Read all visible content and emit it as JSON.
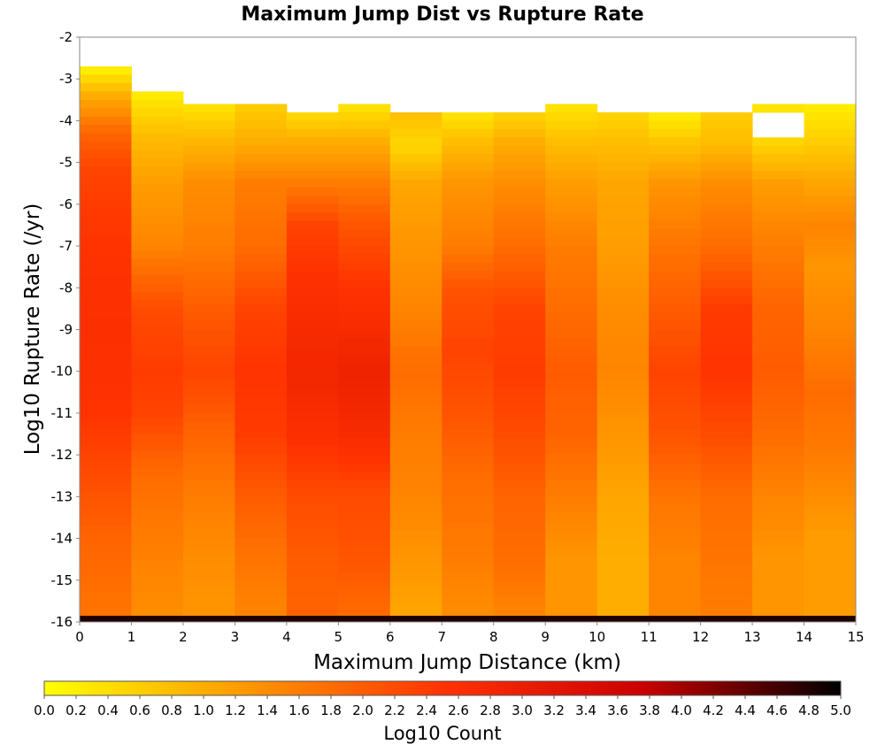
{
  "chart_data": {
    "type": "heatmap",
    "title": "Maximum Jump Dist vs Rupture Rate",
    "xlabel": "Maximum Jump Distance (km)",
    "ylabel": "Log10 Rupture Rate (/yr)",
    "xlim": [
      0,
      15
    ],
    "ylim": [
      -16,
      -2
    ],
    "x_ticks": [
      "0",
      "1",
      "2",
      "3",
      "4",
      "5",
      "6",
      "7",
      "8",
      "9",
      "10",
      "11",
      "12",
      "13",
      "14",
      "15"
    ],
    "y_ticks": [
      "-2",
      "-3",
      "-4",
      "-5",
      "-6",
      "-7",
      "-8",
      "-9",
      "-10",
      "-11",
      "-12",
      "-13",
      "-14",
      "-15",
      "-16"
    ],
    "x_bin_width": 1,
    "y_bin_height": 0.2,
    "colorbar": {
      "label": "Log10 Count",
      "min": 0,
      "max": 5,
      "ticks": [
        "0.0",
        "0.2",
        "0.4",
        "0.6",
        "0.8",
        "1.0",
        "1.2",
        "1.4",
        "1.6",
        "1.8",
        "2.0",
        "2.2",
        "2.4",
        "2.6",
        "2.8",
        "3.0",
        "3.2",
        "3.4",
        "3.6",
        "3.8",
        "4.0",
        "4.2",
        "4.4",
        "4.6",
        "4.8",
        "5.0"
      ],
      "colors": [
        "#ffff00",
        "#ff9900",
        "#ff3300",
        "#cc0000",
        "#000000"
      ]
    },
    "columns": [
      {
        "x": 0,
        "y_top": -2.7,
        "profile": [
          [
            -2.7,
            0.1
          ],
          [
            -3.4,
            1.0
          ],
          [
            -4.3,
            1.9
          ],
          [
            -5.2,
            2.3
          ],
          [
            -7.0,
            2.5
          ],
          [
            -9.0,
            2.6
          ],
          [
            -11.0,
            2.5
          ],
          [
            -12.5,
            2.2
          ],
          [
            -14.0,
            1.9
          ],
          [
            -15.8,
            1.7
          ]
        ]
      },
      {
        "x": 1,
        "y_top": -3.3,
        "profile": [
          [
            -3.3,
            0.2
          ],
          [
            -4.3,
            0.8
          ],
          [
            -5.5,
            1.2
          ],
          [
            -7.0,
            1.5
          ],
          [
            -8.5,
            2.2
          ],
          [
            -10.0,
            2.4
          ],
          [
            -11.0,
            2.3
          ],
          [
            -12.5,
            1.8
          ],
          [
            -14.0,
            1.6
          ],
          [
            -15.8,
            1.4
          ]
        ]
      },
      {
        "x": 2,
        "y_top": -3.6,
        "profile": [
          [
            -3.6,
            0.3
          ],
          [
            -4.5,
            0.9
          ],
          [
            -5.5,
            1.4
          ],
          [
            -7.0,
            1.6
          ],
          [
            -8.5,
            2.0
          ],
          [
            -10.0,
            2.3
          ],
          [
            -11.5,
            1.9
          ],
          [
            -13.0,
            1.6
          ],
          [
            -14.5,
            1.4
          ],
          [
            -15.8,
            1.3
          ]
        ]
      },
      {
        "x": 3,
        "y_top": -3.6,
        "profile": [
          [
            -3.6,
            0.6
          ],
          [
            -4.5,
            1.0
          ],
          [
            -5.5,
            1.6
          ],
          [
            -7.0,
            1.8
          ],
          [
            -8.5,
            2.3
          ],
          [
            -10.0,
            2.5
          ],
          [
            -11.5,
            2.4
          ],
          [
            -13.0,
            2.0
          ],
          [
            -14.5,
            1.7
          ],
          [
            -15.8,
            1.5
          ]
        ]
      },
      {
        "x": 4,
        "y_top": -3.8,
        "profile": [
          [
            -3.8,
            0.4
          ],
          [
            -4.5,
            1.0
          ],
          [
            -5.5,
            1.6
          ],
          [
            -6.5,
            2.3
          ],
          [
            -8.0,
            2.6
          ],
          [
            -10.0,
            2.8
          ],
          [
            -11.5,
            2.6
          ],
          [
            -13.0,
            2.2
          ],
          [
            -14.5,
            2.0
          ],
          [
            -15.8,
            1.9
          ]
        ]
      },
      {
        "x": 5,
        "y_top": -3.6,
        "profile": [
          [
            -3.6,
            0.3
          ],
          [
            -4.5,
            1.0
          ],
          [
            -5.5,
            1.6
          ],
          [
            -6.5,
            2.1
          ],
          [
            -8.0,
            2.5
          ],
          [
            -10.0,
            2.9
          ],
          [
            -11.5,
            2.7
          ],
          [
            -13.0,
            2.2
          ],
          [
            -14.5,
            2.1
          ],
          [
            -15.8,
            1.8
          ]
        ]
      },
      {
        "x": 6,
        "y_top": -3.8,
        "profile": [
          [
            -3.8,
            0.8
          ],
          [
            -4.6,
            0.5
          ],
          [
            -5.5,
            1.1
          ],
          [
            -7.0,
            1.3
          ],
          [
            -8.5,
            1.5
          ],
          [
            -10.0,
            1.8
          ],
          [
            -11.5,
            1.6
          ],
          [
            -13.0,
            1.5
          ],
          [
            -14.5,
            1.3
          ],
          [
            -15.8,
            1.1
          ]
        ]
      },
      {
        "x": 7,
        "y_top": -3.8,
        "profile": [
          [
            -3.8,
            0.3
          ],
          [
            -4.5,
            0.8
          ],
          [
            -5.5,
            1.3
          ],
          [
            -7.0,
            1.6
          ],
          [
            -8.0,
            2.1
          ],
          [
            -9.5,
            2.3
          ],
          [
            -11.0,
            2.1
          ],
          [
            -12.5,
            1.8
          ],
          [
            -14.5,
            1.6
          ],
          [
            -15.8,
            1.4
          ]
        ]
      },
      {
        "x": 8,
        "y_top": -3.8,
        "profile": [
          [
            -3.8,
            0.5
          ],
          [
            -4.5,
            1.0
          ],
          [
            -5.5,
            1.4
          ],
          [
            -7.0,
            1.8
          ],
          [
            -8.5,
            2.3
          ],
          [
            -10.0,
            2.4
          ],
          [
            -11.5,
            2.2
          ],
          [
            -13.0,
            1.9
          ],
          [
            -14.5,
            1.8
          ],
          [
            -15.8,
            1.5
          ]
        ]
      },
      {
        "x": 9,
        "y_top": -3.6,
        "profile": [
          [
            -3.6,
            0.3
          ],
          [
            -4.5,
            0.8
          ],
          [
            -5.5,
            1.2
          ],
          [
            -7.0,
            1.6
          ],
          [
            -8.5,
            1.8
          ],
          [
            -10.0,
            2.0
          ],
          [
            -11.5,
            1.9
          ],
          [
            -13.0,
            1.6
          ],
          [
            -14.5,
            1.3
          ],
          [
            -15.8,
            1.3
          ]
        ]
      },
      {
        "x": 10,
        "y_top": -3.8,
        "profile": [
          [
            -3.8,
            0.5
          ],
          [
            -4.5,
            0.8
          ],
          [
            -5.5,
            1.1
          ],
          [
            -7.0,
            1.2
          ],
          [
            -8.5,
            1.4
          ],
          [
            -10.0,
            1.5
          ],
          [
            -11.5,
            1.3
          ],
          [
            -13.0,
            1.1
          ],
          [
            -14.5,
            1.0
          ],
          [
            -15.8,
            1.0
          ]
        ]
      },
      {
        "x": 11,
        "y_top": -3.8,
        "profile": [
          [
            -3.8,
            0.2
          ],
          [
            -4.5,
            0.7
          ],
          [
            -5.5,
            1.3
          ],
          [
            -7.0,
            1.7
          ],
          [
            -8.5,
            2.0
          ],
          [
            -10.0,
            2.3
          ],
          [
            -11.5,
            2.1
          ],
          [
            -13.0,
            1.7
          ],
          [
            -14.5,
            1.5
          ],
          [
            -15.8,
            1.5
          ]
        ]
      },
      {
        "x": 12,
        "y_top": -3.8,
        "profile": [
          [
            -3.8,
            0.6
          ],
          [
            -4.5,
            0.8
          ],
          [
            -5.5,
            1.4
          ],
          [
            -7.0,
            1.8
          ],
          [
            -8.5,
            2.4
          ],
          [
            -10.0,
            2.5
          ],
          [
            -11.5,
            2.2
          ],
          [
            -13.0,
            1.8
          ],
          [
            -14.5,
            1.7
          ],
          [
            -15.8,
            1.6
          ]
        ]
      },
      {
        "x": 13,
        "y_top": -3.6,
        "profile": [
          [
            -3.6,
            0.3
          ],
          [
            -4.5,
            0.5
          ],
          [
            -5.5,
            1.2
          ],
          [
            -7.0,
            1.6
          ],
          [
            -8.5,
            1.9
          ],
          [
            -10.0,
            2.0
          ],
          [
            -11.5,
            1.8
          ],
          [
            -13.0,
            1.5
          ],
          [
            -14.5,
            1.3
          ],
          [
            -15.8,
            1.3
          ]
        ]
      },
      {
        "x": 14,
        "y_top": -3.6,
        "profile": [
          [
            -3.6,
            0.2
          ],
          [
            -4.5,
            0.6
          ],
          [
            -5.5,
            1.1
          ],
          [
            -6.5,
            1.5
          ],
          [
            -7.5,
            1.3
          ],
          [
            -9.0,
            1.5
          ],
          [
            -10.5,
            1.8
          ],
          [
            -12.0,
            1.6
          ],
          [
            -14.0,
            1.2
          ],
          [
            -15.8,
            1.2
          ]
        ]
      }
    ],
    "empty_cells": [
      {
        "x": 13,
        "y_from": -4.4,
        "y_to": -3.8
      }
    ],
    "bottom_row": {
      "y": -16,
      "value": 4.8
    }
  }
}
